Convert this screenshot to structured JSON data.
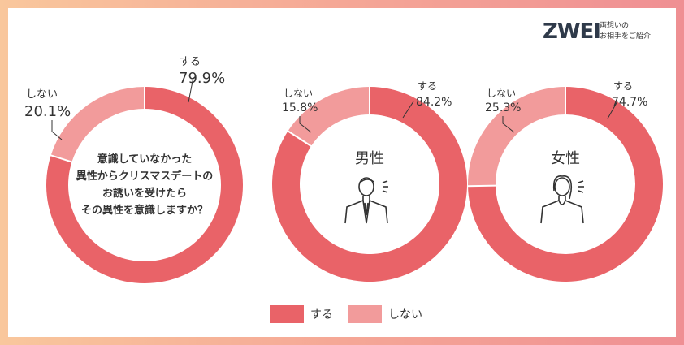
{
  "colors": {
    "yes": "#e96368",
    "no": "#f29b9b",
    "gap": "#ffffff",
    "person": "#333333"
  },
  "logo": {
    "mark": "ZWEI",
    "tagline_line1": "両想いの",
    "tagline_line2": "お相手をご紹介"
  },
  "legend": [
    {
      "key": "yes",
      "label": "する"
    },
    {
      "key": "no",
      "label": "しない"
    }
  ],
  "chart_data": [
    {
      "type": "pie",
      "donut": true,
      "title": "",
      "center_text": [
        "意識していなかった",
        "異性からクリスマスデートの",
        "お誘いを受けたら",
        "その異性を意識しますか？"
      ],
      "slices": [
        {
          "name": "する",
          "value": 79.9,
          "label": "79.9%"
        },
        {
          "name": "しない",
          "value": 20.1,
          "label": "20.1%"
        }
      ]
    },
    {
      "type": "pie",
      "donut": true,
      "title": "男性",
      "center_icon": "man-icon",
      "slices": [
        {
          "name": "する",
          "value": 84.2,
          "label": "84.2%"
        },
        {
          "name": "しない",
          "value": 15.8,
          "label": "15.8%"
        }
      ]
    },
    {
      "type": "pie",
      "donut": true,
      "title": "女性",
      "center_icon": "woman-icon",
      "slices": [
        {
          "name": "する",
          "value": 74.7,
          "label": "74.7%"
        },
        {
          "name": "しない",
          "value": 25.3,
          "label": "25.3%"
        }
      ]
    }
  ]
}
